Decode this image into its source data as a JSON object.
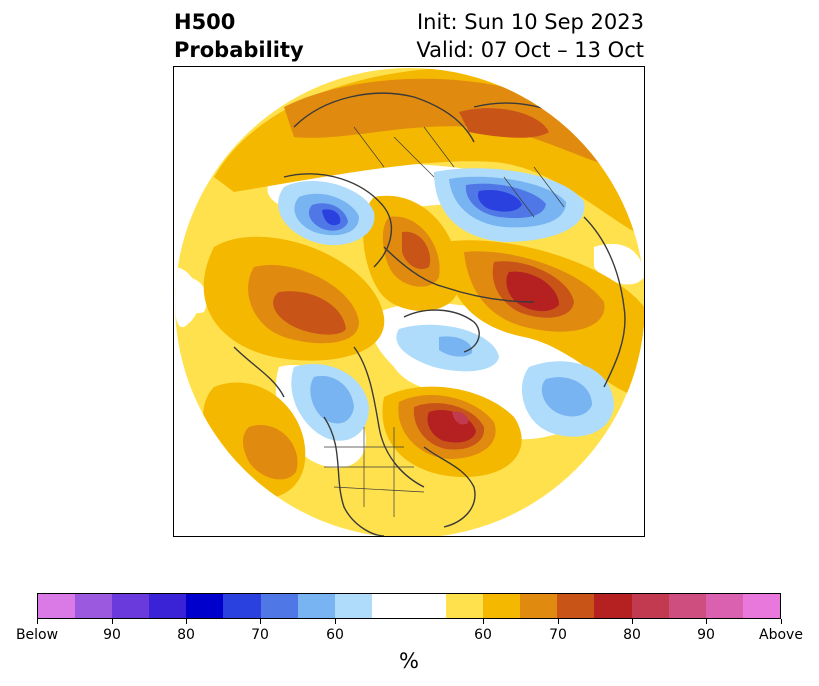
{
  "header": {
    "title_line1": "H500",
    "title_line2": "Probability",
    "init": "Init: Sun 10 Sep 2023",
    "valid": "Valid: 07 Oct – 13 Oct"
  },
  "colorbar": {
    "colors": [
      "#d97ae6",
      "#9b59e0",
      "#6a3adc",
      "#3a22d6",
      "#0000cd",
      "#2a40df",
      "#4f78e6",
      "#78b4f2",
      "#aedcfa",
      "#ffffff",
      "#ffffff",
      "#ffe14d",
      "#f4b800",
      "#e08a10",
      "#c85418",
      "#b52020",
      "#c23a50",
      "#cf4e80",
      "#da60b0",
      "#e878dc"
    ],
    "labels": [
      "Below",
      "90",
      "80",
      "70",
      "60",
      "60",
      "70",
      "80",
      "90",
      "Above"
    ],
    "unit": "%"
  },
  "palette": {
    "blue_light": "#aedcfa",
    "blue_med": "#78b4f2",
    "blue_dark": "#4f78e6",
    "blue_deep": "#2a40df",
    "yellow": "#ffe14d",
    "gold": "#f4b800",
    "orange": "#e08a10",
    "rust": "#c85418",
    "red": "#b52020",
    "crimson": "#c23a50",
    "coast": "#3a3a3a"
  }
}
